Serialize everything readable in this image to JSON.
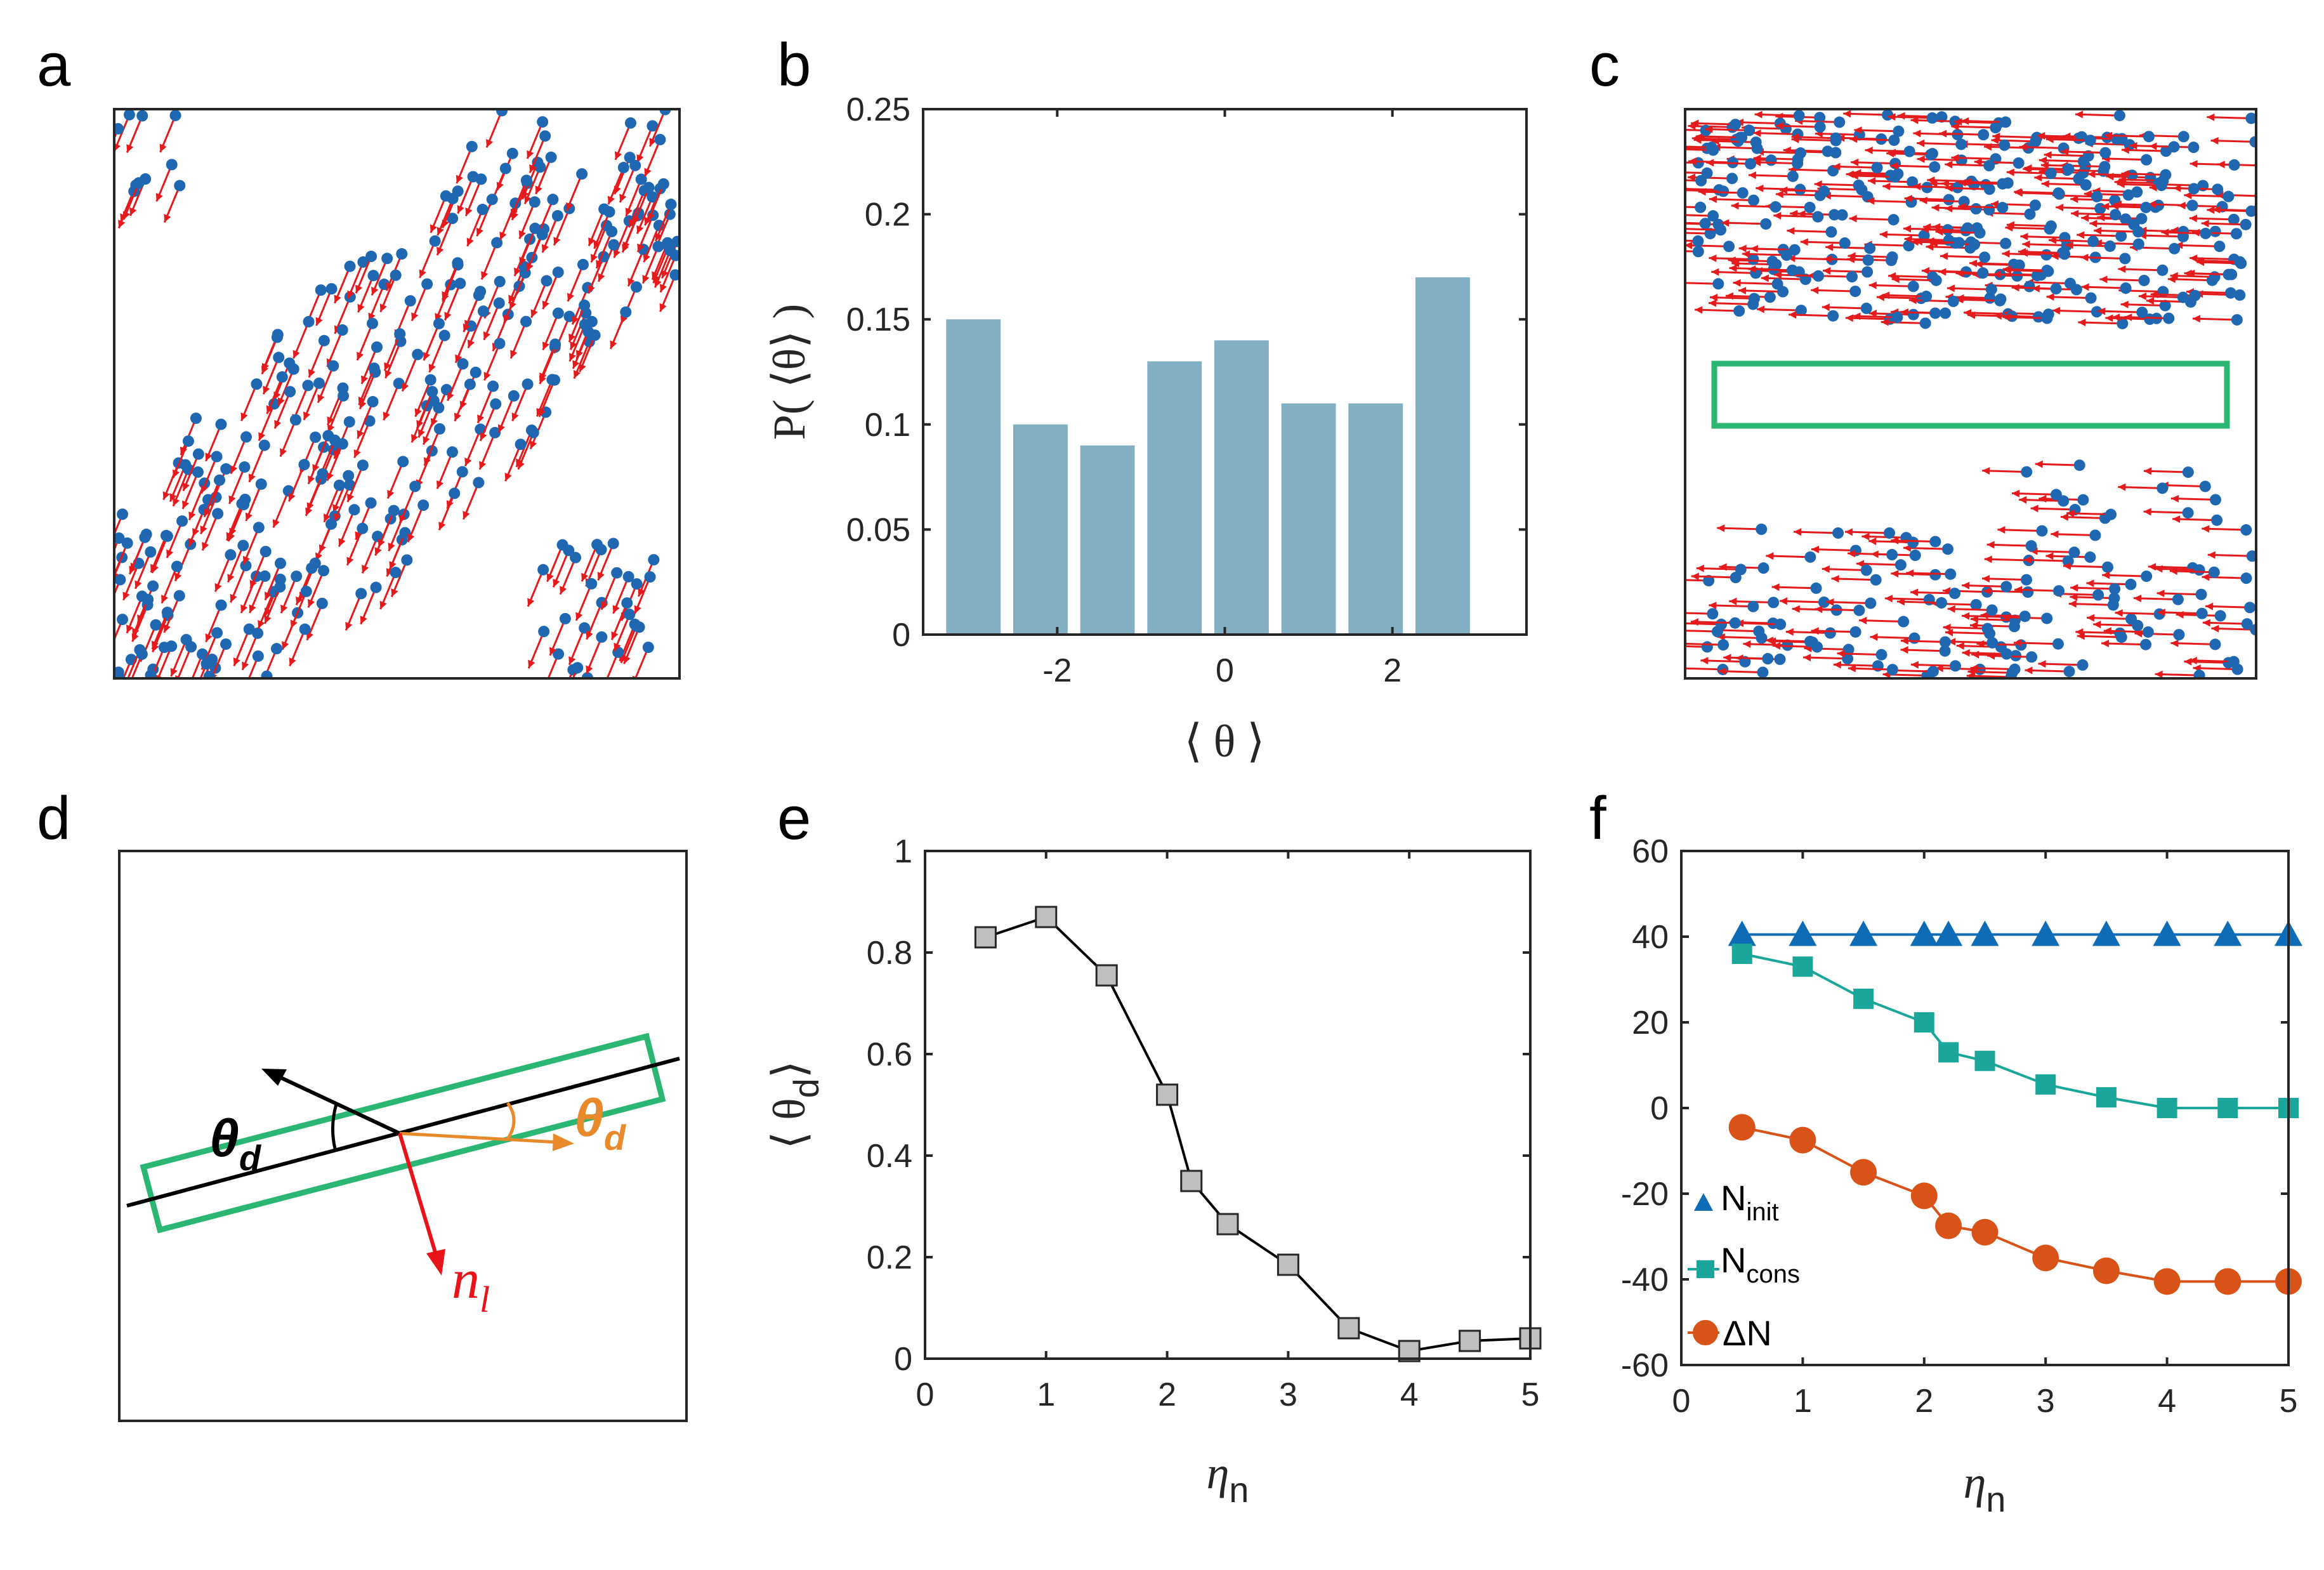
{
  "panel_labels": {
    "a": "a",
    "b": "b",
    "c": "c",
    "d": "d",
    "e": "e",
    "f": "f"
  },
  "colors": {
    "arrow": "#e41a1c",
    "particle": "#1f68b1",
    "bar": "#82afc1",
    "box": "#2bb673",
    "theta_d_orange": "#e88a2c",
    "n_l_red": "#e8141a",
    "marker_gray": "#bfbfbf",
    "n_init": "#0e6cb6",
    "n_cons": "#1aa69a",
    "delta_n": "#d95319"
  },
  "diagram_d": {
    "theta_d_left": "θ",
    "theta_d_left_sub": "d",
    "theta_d_right": "θ",
    "theta_d_right_sub": "d",
    "normal_label": "n",
    "normal_label_sub": "l"
  },
  "chart_data": [
    {
      "panel": "b",
      "type": "bar",
      "x": [
        -3.0,
        -2.2,
        -1.4,
        -0.6,
        0.2,
        1.0,
        1.8,
        2.6
      ],
      "values": [
        0.15,
        0.1,
        0.09,
        0.13,
        0.14,
        0.11,
        0.11,
        0.17
      ],
      "xticks": [
        -2,
        0,
        2
      ],
      "xtick_labels": [
        "-2",
        "0",
        "2"
      ],
      "yticks": [
        0,
        0.05,
        0.1,
        0.15,
        0.2,
        0.25
      ],
      "ytick_labels": [
        "0",
        "0.05",
        "0.1",
        "0.15",
        "0.2",
        "0.25"
      ],
      "xlim": [
        -3.6,
        3.6
      ],
      "ylim": [
        0,
        0.25
      ],
      "xlabel": "⟨ θ ⟩",
      "ylabel": "P( ⟨θ⟩ )"
    },
    {
      "panel": "e",
      "type": "line",
      "x": [
        0.5,
        1.0,
        1.5,
        2.0,
        2.2,
        2.5,
        3.0,
        3.5,
        4.0,
        4.5,
        5.0
      ],
      "values": [
        0.83,
        0.87,
        0.755,
        0.52,
        0.35,
        0.265,
        0.185,
        0.06,
        0.015,
        0.035,
        0.04
      ],
      "xticks": [
        0,
        1,
        2,
        3,
        4,
        5
      ],
      "xtick_labels": [
        "0",
        "1",
        "2",
        "3",
        "4",
        "5"
      ],
      "yticks": [
        0,
        0.2,
        0.4,
        0.6,
        0.8,
        1
      ],
      "ytick_labels": [
        "0",
        "0.2",
        "0.4",
        "0.6",
        "0.8",
        "1"
      ],
      "xlim": [
        0,
        5
      ],
      "ylim": [
        0,
        1
      ],
      "xlabel": "η",
      "xlabel_sub": "n",
      "ylabel": "⟨ θ",
      "ylabel_sub": "d",
      "ylabel_close": "⟩"
    },
    {
      "panel": "f",
      "type": "line",
      "x": [
        0.5,
        1.0,
        1.5,
        2.0,
        2.2,
        2.5,
        3.0,
        3.5,
        4.0,
        4.5,
        5.0
      ],
      "series": [
        {
          "name": "N",
          "sub": "init",
          "values": [
            40.5,
            40.5,
            40.5,
            40.5,
            40.5,
            40.5,
            40.5,
            40.5,
            40.5,
            40.5,
            40.5
          ]
        },
        {
          "name": "N",
          "sub": "cons",
          "values": [
            36,
            33,
            25.5,
            20,
            13,
            11,
            5.5,
            2.5,
            0,
            0,
            0
          ]
        },
        {
          "name": "ΔN",
          "sub": "",
          "values": [
            -4.5,
            -7.5,
            -15,
            -20.5,
            -27.5,
            -29,
            -35,
            -38,
            -40.5,
            -40.5,
            -40.5
          ]
        }
      ],
      "xticks": [
        0,
        1,
        2,
        3,
        4,
        5
      ],
      "xtick_labels": [
        "0",
        "1",
        "2",
        "3",
        "4",
        "5"
      ],
      "yticks": [
        -60,
        -40,
        -20,
        0,
        20,
        40,
        60
      ],
      "ytick_labels": [
        "-60",
        "-40",
        "-20",
        "0",
        "20",
        "40",
        "60"
      ],
      "xlim": [
        0,
        5
      ],
      "ylim": [
        -60,
        60
      ],
      "xlabel": "η",
      "xlabel_sub": "n",
      "legend_location": "lower-left"
    }
  ]
}
